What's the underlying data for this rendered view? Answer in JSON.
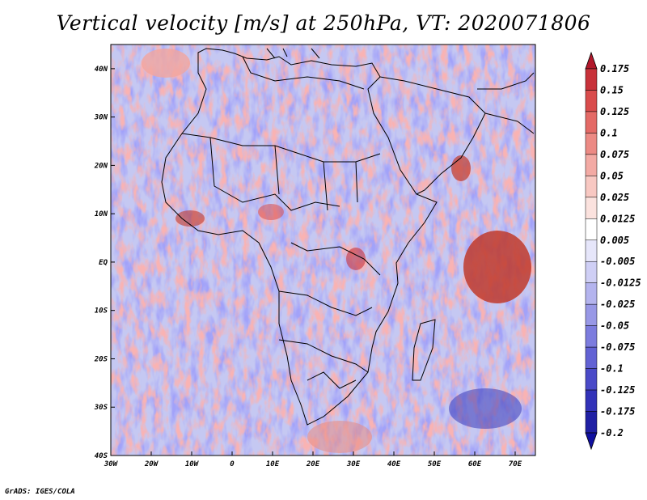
{
  "title": "Vertical velocity [m/s] at 250hPa, VT: 2020071806",
  "footer": "GrADS: IGES/COLA",
  "map": {
    "projection": "latlon",
    "lon_range": [
      -30,
      75
    ],
    "lat_range": [
      -40,
      45
    ],
    "lat_ticks": [
      "40N",
      "30N",
      "20N",
      "10N",
      "EQ",
      "10S",
      "20S",
      "30S",
      "40S"
    ],
    "lon_ticks": [
      "30W",
      "20W",
      "10W",
      "0",
      "10E",
      "20E",
      "30E",
      "40E",
      "50E",
      "60E",
      "70E"
    ],
    "field": "vertical velocity",
    "level": "250hPa",
    "valid_time": "2020071806"
  },
  "colorbar": {
    "levels": [
      "0.175",
      "0.15",
      "0.125",
      "0.1",
      "0.075",
      "0.05",
      "0.025",
      "0.0125",
      "0.005",
      "-0.005",
      "-0.0125",
      "-0.025",
      "-0.05",
      "-0.075",
      "-0.1",
      "-0.125",
      "-0.175",
      "-0.2"
    ],
    "colors": [
      "#b2182b",
      "#c8323a",
      "#d94c4c",
      "#e46a66",
      "#ec8a84",
      "#f3aaa4",
      "#f8c8c2",
      "#fbe2de",
      "#ffffff",
      "#e6e6fa",
      "#cfcff5",
      "#b4b4ee",
      "#9898e6",
      "#7c7cde",
      "#6262d4",
      "#4a4ac8",
      "#3232b8",
      "#2020a4",
      "#1010a0"
    ]
  }
}
